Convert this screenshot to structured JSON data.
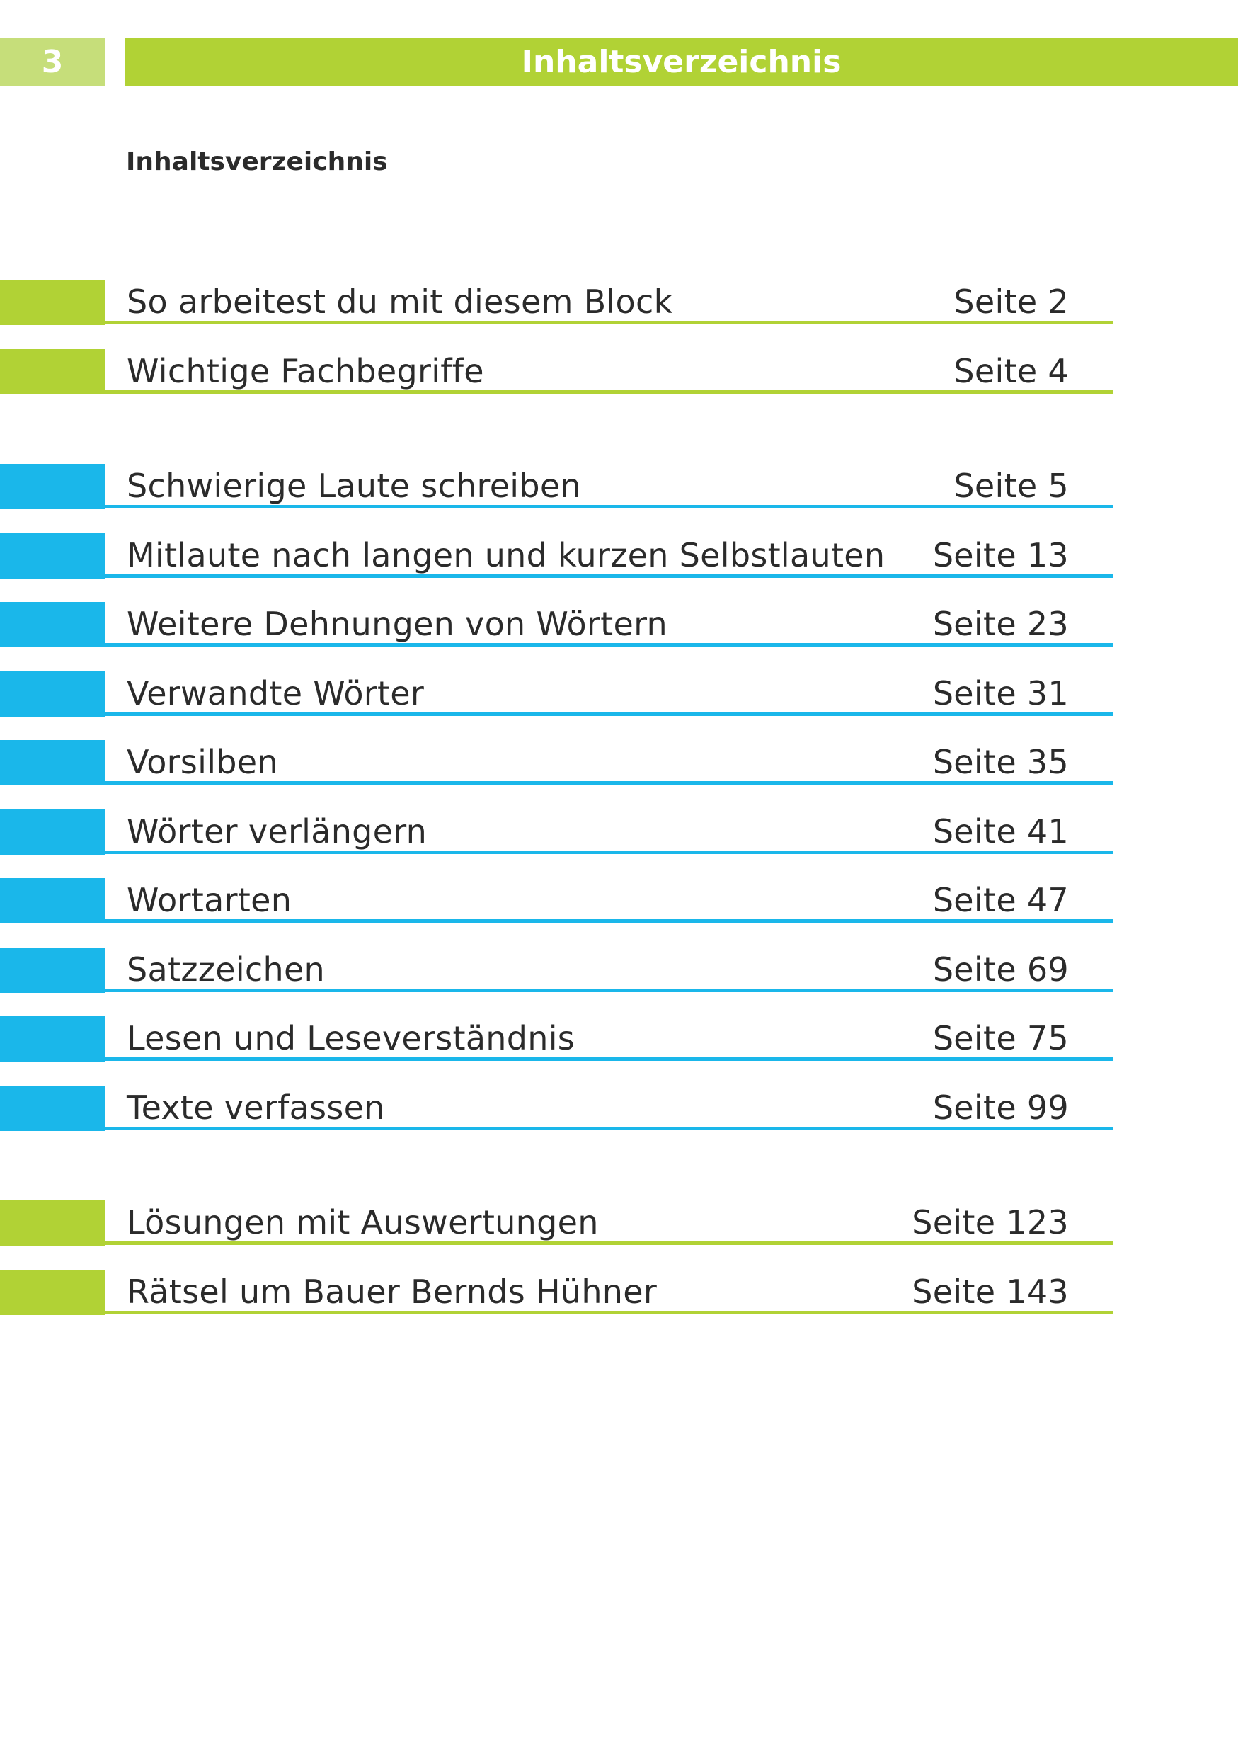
{
  "header": {
    "page_number": "3",
    "title": "Inhaltsverzeichnis"
  },
  "page_heading": "Inhaltsverzeichnis",
  "colors": {
    "green": "#b1d235",
    "light_green": "#c6de7a",
    "blue": "#1ab7ea"
  },
  "toc": {
    "intro": [
      {
        "title": "So arbeitest du mit diesem Block",
        "page": "Seite 2"
      },
      {
        "title": "Wichtige Fachbegriffe",
        "page": "Seite 4"
      }
    ],
    "chapters": [
      {
        "title": "Schwierige Laute schreiben",
        "page": "Seite 5"
      },
      {
        "title": "Mitlaute nach langen und kurzen Selbstlauten",
        "page": "Seite 13"
      },
      {
        "title": "Weitere Dehnungen von Wörtern",
        "page": "Seite 23"
      },
      {
        "title": "Verwandte Wörter",
        "page": "Seite 31"
      },
      {
        "title": "Vorsilben",
        "page": "Seite 35"
      },
      {
        "title": "Wörter verlängern",
        "page": "Seite 41"
      },
      {
        "title": "Wortarten",
        "page": "Seite 47"
      },
      {
        "title": "Satzzeichen",
        "page": "Seite 69"
      },
      {
        "title": "Lesen und Leseverständnis",
        "page": "Seite 75"
      },
      {
        "title": "Texte verfassen",
        "page": "Seite 99"
      }
    ],
    "appendix": [
      {
        "title": "Lösungen mit Auswertungen",
        "page": "Seite 123"
      },
      {
        "title": "Rätsel um Bauer Bernds Hühner",
        "page": "Seite 143"
      }
    ]
  }
}
